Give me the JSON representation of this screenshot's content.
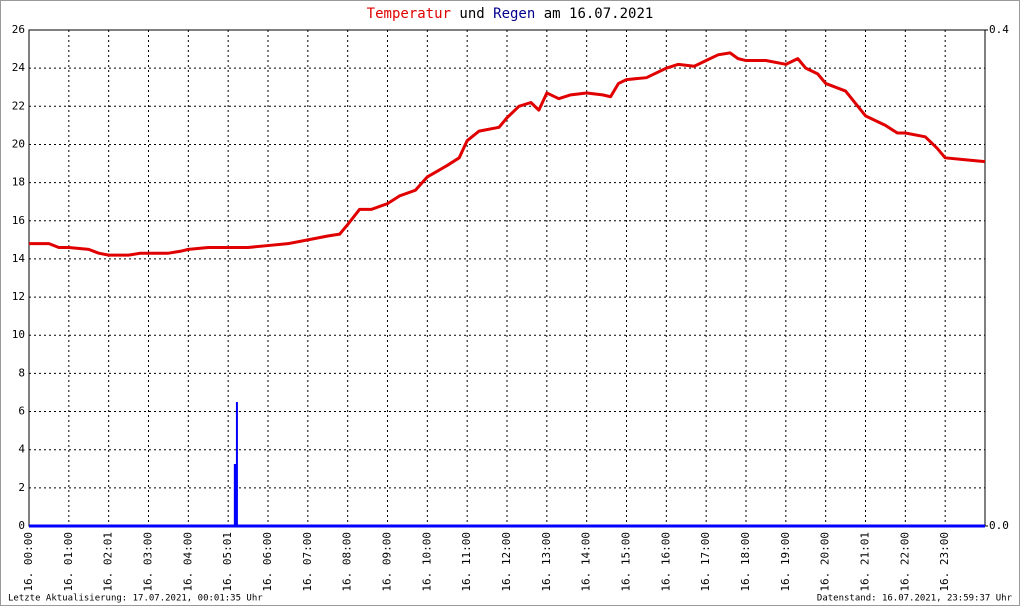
{
  "chart_data": {
    "type": "line",
    "title": {
      "connector": "und",
      "suffix": "am 16.07.2021"
    },
    "series": [
      {
        "name": "Temperatur",
        "color": "#e00000",
        "type": "line",
        "x": [
          0,
          0.5,
          0.75,
          1.0,
          1.5,
          1.75,
          2.0,
          2.5,
          2.8,
          3.0,
          3.5,
          3.8,
          4.0,
          4.5,
          5.0,
          5.5,
          6.0,
          6.5,
          7.0,
          7.5,
          7.8,
          8.0,
          8.3,
          8.6,
          9.0,
          9.3,
          9.7,
          10.0,
          10.5,
          10.8,
          11.0,
          11.3,
          11.8,
          12.0,
          12.3,
          12.6,
          12.8,
          13.0,
          13.3,
          13.6,
          14.0,
          14.4,
          14.6,
          14.8,
          15.0,
          15.5,
          16.0,
          16.3,
          16.7,
          17.0,
          17.3,
          17.6,
          17.8,
          18.0,
          18.5,
          19.0,
          19.3,
          19.5,
          19.8,
          20.0,
          20.5,
          21.0,
          21.5,
          21.8,
          22.0,
          22.5,
          22.8,
          23.0,
          23.5,
          24.0
        ],
        "values": [
          14.8,
          14.8,
          14.6,
          14.6,
          14.5,
          14.3,
          14.2,
          14.2,
          14.3,
          14.3,
          14.3,
          14.4,
          14.5,
          14.6,
          14.6,
          14.6,
          14.7,
          14.8,
          15.0,
          15.2,
          15.3,
          15.8,
          16.6,
          16.6,
          16.9,
          17.3,
          17.6,
          18.3,
          18.9,
          19.3,
          20.2,
          20.7,
          20.9,
          21.4,
          22.0,
          22.2,
          21.8,
          22.7,
          22.4,
          22.6,
          22.7,
          22.6,
          22.5,
          23.2,
          23.4,
          23.5,
          24.0,
          24.2,
          24.1,
          24.4,
          24.7,
          24.8,
          24.5,
          24.4,
          24.4,
          24.2,
          24.5,
          24.0,
          23.7,
          23.2,
          22.8,
          21.5,
          21.0,
          20.6,
          20.6,
          20.4,
          19.8,
          19.3,
          19.2,
          19.1
        ]
      },
      {
        "name": "Regen",
        "color": "#0000ff",
        "title_color": "#00008b",
        "type": "bar",
        "axis": "y2",
        "x": [
          5.18,
          5.22
        ],
        "values": [
          0.05,
          0.1
        ]
      }
    ],
    "xlim": [
      0,
      24
    ],
    "xticks": [
      {
        "value": 0,
        "label": "16. 00:00"
      },
      {
        "value": 1,
        "label": "16. 01:00"
      },
      {
        "value": 2,
        "label": "16. 02:01"
      },
      {
        "value": 3,
        "label": "16. 03:00"
      },
      {
        "value": 4,
        "label": "16. 04:00"
      },
      {
        "value": 5,
        "label": "16. 05:01"
      },
      {
        "value": 6,
        "label": "16. 06:00"
      },
      {
        "value": 7,
        "label": "16. 07:00"
      },
      {
        "value": 8,
        "label": "16. 08:00"
      },
      {
        "value": 9,
        "label": "16. 09:00"
      },
      {
        "value": 10,
        "label": "16. 10:00"
      },
      {
        "value": 11,
        "label": "16. 11:00"
      },
      {
        "value": 12,
        "label": "16. 12:00"
      },
      {
        "value": 13,
        "label": "16. 13:00"
      },
      {
        "value": 14,
        "label": "16. 14:00"
      },
      {
        "value": 15,
        "label": "16. 15:00"
      },
      {
        "value": 16,
        "label": "16. 16:00"
      },
      {
        "value": 17,
        "label": "16. 17:00"
      },
      {
        "value": 18,
        "label": "16. 18:00"
      },
      {
        "value": 19,
        "label": "16. 19:00"
      },
      {
        "value": 20,
        "label": "16. 20:00"
      },
      {
        "value": 21,
        "label": "16. 21:01"
      },
      {
        "value": 22,
        "label": "16. 22:00"
      },
      {
        "value": 23,
        "label": "16. 23:00"
      }
    ],
    "ylim": [
      0,
      26
    ],
    "yticks": [
      0,
      2,
      4,
      6,
      8,
      10,
      12,
      14,
      16,
      18,
      20,
      22,
      24,
      26
    ],
    "y2lim": [
      0,
      0.4
    ],
    "y2ticks": [
      {
        "value": 0,
        "label": "0.0"
      },
      0.4
    ],
    "grid": true,
    "footer_left": "Letzte Aktualisierung: 17.07.2021, 00:01:35 Uhr",
    "footer_right": "Datenstand: 16.07.2021, 23:59:37 Uhr"
  }
}
